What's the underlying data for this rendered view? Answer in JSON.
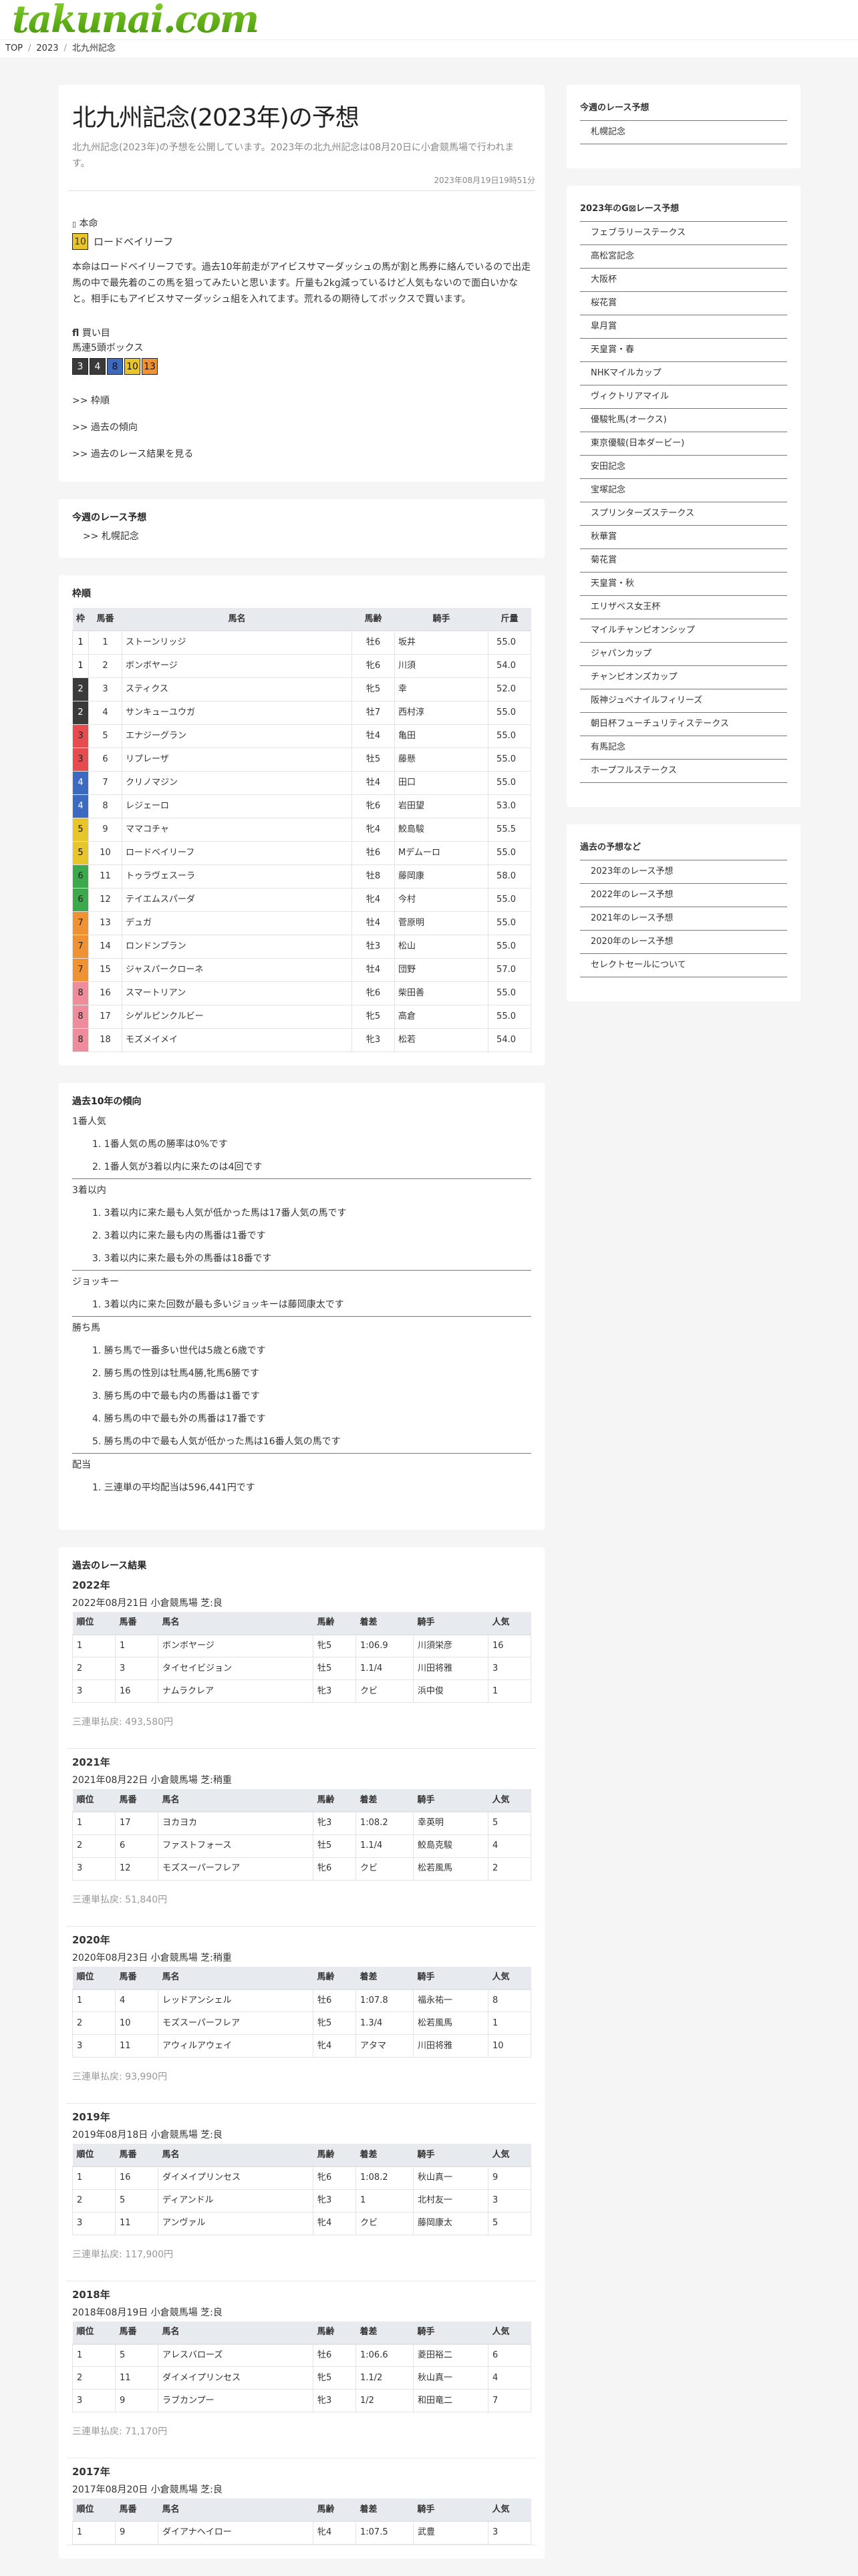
{
  "site": {
    "logo": "takunai.com"
  },
  "breadcrumb": [
    "TOP",
    "2023",
    "北九州記念"
  ],
  "article": {
    "title": "北九州記念(2023年)の予想",
    "lead": "北九州記念(2023年)の予想を公開しています。2023年の北九州記念は08月20日に小倉競馬場で行われます。",
    "date": "2023年08月19日19時51分",
    "honmei_icon": "star-icon",
    "honmei_label": "本命",
    "honmei_num": "10",
    "honmei_name": "ロードベイリーフ",
    "body": "本命はロードベイリーフです。過去10年前走がアイビスサマーダッシュの馬が割と馬券に絡んでいるので出走馬の中で最先着のこの馬を狙ってみたいと思います。斤量も2kg減っているけど人気もないので面白いかなと。相手にもアイビスサマーダッシュ組を入れてます。荒れるの期待してボックスで買います。",
    "bet_icon": "ticket-icon",
    "bet_label": "買い目",
    "bet_type": "馬連5頭ボックス",
    "bet_nums": [
      {
        "n": "3",
        "c": "#3a3a3a",
        "t": "#fff"
      },
      {
        "n": "4",
        "c": "#3a3a3a",
        "t": "#fff"
      },
      {
        "n": "8",
        "c": "#3c6ac0",
        "t": "#111"
      },
      {
        "n": "10",
        "c": "#e8c52b",
        "t": "#111"
      },
      {
        "n": "13",
        "c": "#ee9233",
        "t": "#111"
      }
    ],
    "links": [
      ">> 枠順",
      ">> 過去の傾向",
      ">> 過去のレース結果を見る"
    ]
  },
  "weekly": {
    "title": "今週のレース予想",
    "items": [
      ">> 札幌記念"
    ]
  },
  "waku": {
    "title": "枠順",
    "headers": [
      "枠",
      "馬番",
      "馬名",
      "馬齢",
      "騎手",
      "斤量"
    ],
    "rows": [
      [
        "1",
        "1",
        "ストーンリッジ",
        "牡6",
        "坂井",
        "55.0"
      ],
      [
        "1",
        "2",
        "ボンボヤージ",
        "牝6",
        "川須",
        "54.0"
      ],
      [
        "2",
        "3",
        "スティクス",
        "牝5",
        "幸",
        "52.0"
      ],
      [
        "2",
        "4",
        "サンキューユウガ",
        "牡7",
        "西村淳",
        "55.0"
      ],
      [
        "3",
        "5",
        "エナジーグラン",
        "牡4",
        "亀田",
        "55.0"
      ],
      [
        "3",
        "6",
        "リプレーザ",
        "牡5",
        "藤懸",
        "55.0"
      ],
      [
        "4",
        "7",
        "クリノマジン",
        "牡4",
        "田口",
        "55.0"
      ],
      [
        "4",
        "8",
        "レジェーロ",
        "牝6",
        "岩田望",
        "53.0"
      ],
      [
        "5",
        "9",
        "ママコチャ",
        "牝4",
        "鮫島駿",
        "55.5"
      ],
      [
        "5",
        "10",
        "ロードベイリーフ",
        "牡6",
        "Mデムーロ",
        "55.0"
      ],
      [
        "6",
        "11",
        "トゥラヴェスーラ",
        "牡8",
        "藤岡康",
        "58.0"
      ],
      [
        "6",
        "12",
        "テイエムスパーダ",
        "牝4",
        "今村",
        "55.0"
      ],
      [
        "7",
        "13",
        "デュガ",
        "牡4",
        "菅原明",
        "55.0"
      ],
      [
        "7",
        "14",
        "ロンドンプラン",
        "牡3",
        "松山",
        "55.0"
      ],
      [
        "7",
        "15",
        "ジャスパークローネ",
        "牡4",
        "団野",
        "57.0"
      ],
      [
        "8",
        "16",
        "スマートリアン",
        "牝6",
        "柴田善",
        "55.0"
      ],
      [
        "8",
        "17",
        "シゲルピンクルビー",
        "牝5",
        "高倉",
        "55.0"
      ],
      [
        "8",
        "18",
        "モズメイメイ",
        "牝3",
        "松若",
        "54.0"
      ]
    ],
    "frame_colors": {
      "1": "#ffffff",
      "2": "#3a3a3a",
      "3": "#e54b4f",
      "4": "#3c6ac0",
      "5": "#e8c52b",
      "6": "#3caa4c",
      "7": "#ee9233",
      "8": "#ee8c9c"
    }
  },
  "trends": {
    "title": "過去10年の傾向",
    "groups": [
      {
        "label": "1番人気",
        "items": [
          "1. 1番人気の馬の勝率は0%です",
          "2. 1番人気が3着以内に来たのは4回です"
        ]
      },
      {
        "label": "3着以内",
        "items": [
          "1. 3着以内に来た最も人気が低かった馬は17番人気の馬です",
          "2. 3着以内に来た最も内の馬番は1番です",
          "3. 3着以内に来た最も外の馬番は18番です"
        ]
      },
      {
        "label": "ジョッキー",
        "items": [
          "1. 3着以内に来た回数が最も多いジョッキーは藤岡康太です"
        ]
      },
      {
        "label": "勝ち馬",
        "items": [
          "1. 勝ち馬で一番多い世代は5歳と6歳です",
          "2. 勝ち馬の性別は牡馬4勝,牝馬6勝です",
          "3. 勝ち馬の中で最も内の馬番は1番です",
          "4. 勝ち馬の中で最も外の馬番は17番です",
          "5. 勝ち馬の中で最も人気が低かった馬は16番人気の馬です"
        ]
      },
      {
        "label": "配当",
        "items": [
          "1. 三連単の平均配当は596,441円です"
        ]
      }
    ]
  },
  "results": {
    "title": "過去のレース結果",
    "headers": [
      "順位",
      "馬番",
      "馬名",
      "馬齢",
      "着差",
      "騎手",
      "人気"
    ],
    "years": [
      {
        "year": "2022年",
        "info": "2022年08月21日 小倉競馬場 芝:良",
        "rows": [
          [
            "1",
            "1",
            "ボンボヤージ",
            "牝5",
            "1:06.9",
            "川須栄彦",
            "16"
          ],
          [
            "2",
            "3",
            "タイセイビジョン",
            "牡5",
            "1.1/4",
            "川田将雅",
            "3"
          ],
          [
            "3",
            "16",
            "ナムラクレア",
            "牝3",
            "クビ",
            "浜中俊",
            "1"
          ]
        ],
        "payout": "三連単払戻: 493,580円"
      },
      {
        "year": "2021年",
        "info": "2021年08月22日 小倉競馬場 芝:稍重",
        "rows": [
          [
            "1",
            "17",
            "ヨカヨカ",
            "牝3",
            "1:08.2",
            "幸英明",
            "5"
          ],
          [
            "2",
            "6",
            "ファストフォース",
            "牡5",
            "1.1/4",
            "鮫島克駿",
            "4"
          ],
          [
            "3",
            "12",
            "モズスーパーフレア",
            "牝6",
            "クビ",
            "松若風馬",
            "2"
          ]
        ],
        "payout": "三連単払戻: 51,840円"
      },
      {
        "year": "2020年",
        "info": "2020年08月23日 小倉競馬場 芝:稍重",
        "rows": [
          [
            "1",
            "4",
            "レッドアンシェル",
            "牡6",
            "1:07.8",
            "福永祐一",
            "8"
          ],
          [
            "2",
            "10",
            "モズスーパーフレア",
            "牝5",
            "1.3/4",
            "松若風馬",
            "1"
          ],
          [
            "3",
            "11",
            "アウィルアウェイ",
            "牝4",
            "アタマ",
            "川田将雅",
            "10"
          ]
        ],
        "payout": "三連単払戻: 93,990円"
      },
      {
        "year": "2019年",
        "info": "2019年08月18日 小倉競馬場 芝:良",
        "rows": [
          [
            "1",
            "16",
            "ダイメイプリンセス",
            "牝6",
            "1:08.2",
            "秋山真一",
            "9"
          ],
          [
            "2",
            "5",
            "ディアンドル",
            "牝3",
            "1",
            "北村友一",
            "3"
          ],
          [
            "3",
            "11",
            "アンヴァル",
            "牝4",
            "クビ",
            "藤岡康太",
            "5"
          ]
        ],
        "payout": "三連単払戻: 117,900円"
      },
      {
        "year": "2018年",
        "info": "2018年08月19日 小倉競馬場 芝:良",
        "rows": [
          [
            "1",
            "5",
            "アレスバローズ",
            "牡6",
            "1:06.6",
            "菱田裕二",
            "6"
          ],
          [
            "2",
            "11",
            "ダイメイプリンセス",
            "牝5",
            "1.1/2",
            "秋山真一",
            "4"
          ],
          [
            "3",
            "9",
            "ラブカンプー",
            "牝3",
            "1/2",
            "和田竜二",
            "7"
          ]
        ],
        "payout": "三連単払戻: 71,170円"
      },
      {
        "year": "2017年",
        "info": "2017年08月20日 小倉競馬場 芝:良",
        "rows": [
          [
            "1",
            "9",
            "ダイアナヘイロー",
            "牝4",
            "1:07.5",
            "武豊",
            "3"
          ]
        ],
        "payout": ""
      }
    ]
  },
  "sidebar": {
    "weekly": {
      "title": "今週のレース予想",
      "items": [
        "札幌記念"
      ]
    },
    "g1": {
      "title": "2023年のG⊠レース予想",
      "items": [
        "フェブラリーステークス",
        "高松宮記念",
        "大阪杯",
        "桜花賞",
        "皐月賞",
        "天皇賞・春",
        "NHKマイルカップ",
        "ヴィクトリアマイル",
        "優駿牝馬(オークス)",
        "東京優駿(日本ダービー)",
        "安田記念",
        "宝塚記念",
        "スプリンターズステークス",
        "秋華賞",
        "菊花賞",
        "天皇賞・秋",
        "エリザベス女王杯",
        "マイルチャンピオンシップ",
        "ジャパンカップ",
        "チャンピオンズカップ",
        "阪神ジュベナイルフィリーズ",
        "朝日杯フューチュリティステークス",
        "有馬記念",
        "ホープフルステークス"
      ]
    },
    "past": {
      "title": "過去の予想など",
      "items": [
        "2023年のレース予想",
        "2022年のレース予想",
        "2021年のレース予想",
        "2020年のレース予想",
        "セレクトセールについて"
      ]
    }
  }
}
